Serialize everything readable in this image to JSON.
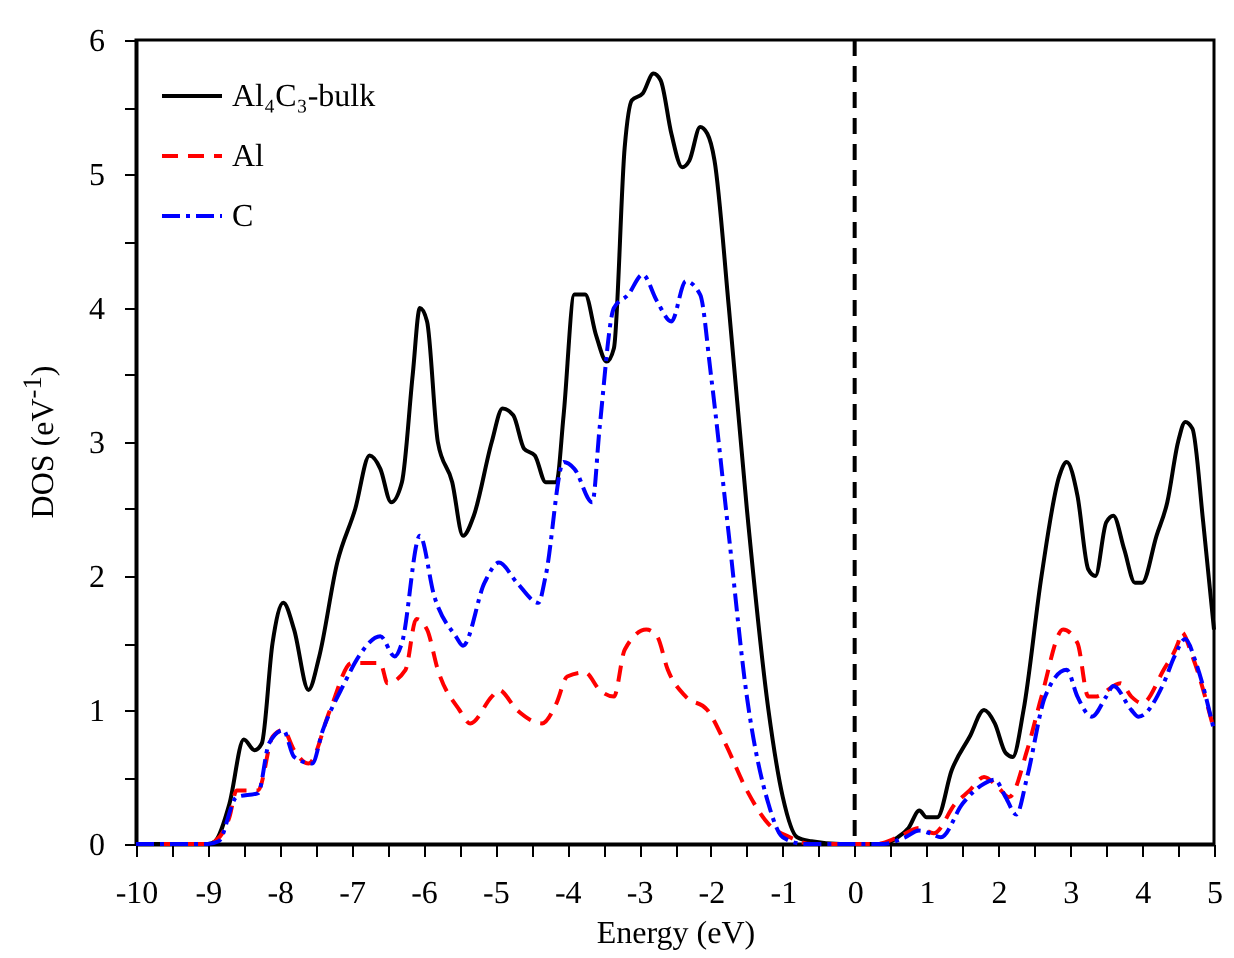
{
  "chart_data": {
    "type": "line",
    "xlabel": "Energy (eV)",
    "ylabel": "DOS (eV$^{-1}$)",
    "xlim": [
      -10,
      5
    ],
    "xticks": [
      -10,
      {
        "value": -9.5,
        "label": null
      },
      -9,
      {
        "value": -8.5,
        "label": null
      },
      -8,
      {
        "value": -7.5,
        "label": null
      },
      -7,
      {
        "value": -6.5,
        "label": null
      },
      -6,
      {
        "value": -5.5,
        "label": null
      },
      -5,
      {
        "value": -4.5,
        "label": null
      },
      -4,
      {
        "value": -3.5,
        "label": null
      },
      -3,
      {
        "value": -2.5,
        "label": null
      },
      -2,
      {
        "value": -1.5,
        "label": null
      },
      -1,
      {
        "value": -0.5,
        "label": null
      },
      0,
      {
        "value": 0.5,
        "label": null
      },
      1,
      {
        "value": 1.5,
        "label": null
      },
      2,
      {
        "value": 2.5,
        "label": null
      },
      3,
      {
        "value": 3.5,
        "label": null
      },
      4,
      {
        "value": 4.5,
        "label": null
      },
      5
    ],
    "ylim": [
      0,
      6
    ],
    "yticks": [
      0,
      {
        "value": 0.5,
        "label": null
      },
      1,
      {
        "value": 1.5,
        "label": null
      },
      2,
      {
        "value": 2.5,
        "label": null
      },
      3,
      {
        "value": 3.5,
        "label": null
      },
      4,
      {
        "value": 4.5,
        "label": null
      },
      5,
      {
        "value": 5.5,
        "label": null
      },
      6
    ],
    "grid": false,
    "legend": "top left",
    "marker": "none",
    "ref_lines": [
      {
        "axis": "x",
        "value": 0,
        "color": "#000000",
        "line_style": "dashed"
      }
    ],
    "series": [
      {
        "name": "Al₄C₃-bulk",
        "color": "#000000",
        "line_style": "solid",
        "x": [
          -10,
          -9,
          -8.9,
          -8.7,
          -8.5,
          -8.35,
          -8.25,
          -8.1,
          -7.95,
          -7.8,
          -7.6,
          -7.45,
          -7.2,
          -6.95,
          -6.75,
          -6.6,
          -6.45,
          -6.3,
          -6.15,
          -6.05,
          -5.95,
          -5.8,
          -5.6,
          -5.45,
          -5.3,
          -5.05,
          -4.9,
          -4.75,
          -4.6,
          -4.45,
          -4.3,
          -4.15,
          -4.05,
          -3.9,
          -3.75,
          -3.6,
          -3.45,
          -3.35,
          -3.2,
          -3.1,
          -2.95,
          -2.8,
          -2.7,
          -2.55,
          -2.4,
          -2.3,
          -2.15,
          -2.05,
          -1.95,
          -1.75,
          -1.5,
          -1.2,
          -1.0,
          -0.8,
          -0.6,
          -0.2,
          0.4,
          0.6,
          0.75,
          0.9,
          1.0,
          1.15,
          1.35,
          1.6,
          1.8,
          1.95,
          2.1,
          2.2,
          2.35,
          2.6,
          2.85,
          2.95,
          3.1,
          3.25,
          3.35,
          3.5,
          3.6,
          3.75,
          3.9,
          4.0,
          4.2,
          4.35,
          4.5,
          4.6,
          4.7,
          4.85,
          5.0
        ],
        "values": [
          0,
          0,
          0.02,
          0.3,
          0.78,
          0.7,
          0.75,
          1.5,
          1.8,
          1.6,
          1.15,
          1.4,
          2.1,
          2.5,
          2.9,
          2.8,
          2.55,
          2.7,
          3.5,
          4.0,
          3.9,
          3.0,
          2.7,
          2.3,
          2.45,
          3.0,
          3.25,
          3.2,
          2.95,
          2.9,
          2.7,
          2.7,
          3.2,
          4.1,
          4.1,
          3.8,
          3.6,
          3.7,
          5.2,
          5.55,
          5.6,
          5.75,
          5.7,
          5.3,
          5.05,
          5.1,
          5.35,
          5.3,
          5.1,
          4.0,
          2.5,
          1.0,
          0.35,
          0.05,
          0.02,
          0,
          0,
          0.05,
          0.12,
          0.25,
          0.2,
          0.2,
          0.55,
          0.8,
          1.0,
          0.9,
          0.68,
          0.65,
          1.0,
          2.0,
          2.75,
          2.85,
          2.6,
          2.05,
          2.0,
          2.4,
          2.45,
          2.2,
          1.95,
          1.95,
          2.3,
          2.55,
          3.0,
          3.15,
          3.1,
          2.4,
          1.6
        ]
      },
      {
        "name": "Al",
        "color": "#ff0000",
        "line_style": "dashed",
        "x": [
          -10,
          -9,
          -8.9,
          -8.7,
          -8.6,
          -8.3,
          -8.1,
          -7.95,
          -7.8,
          -7.6,
          -7.3,
          -7.0,
          -6.6,
          -6.5,
          -6.25,
          -6.1,
          -5.95,
          -5.8,
          -5.5,
          -5.35,
          -5.05,
          -4.95,
          -4.7,
          -4.35,
          -4.15,
          -4.0,
          -3.75,
          -3.55,
          -3.35,
          -3.2,
          -2.9,
          -2.75,
          -2.6,
          -2.35,
          -2.05,
          -1.8,
          -1.5,
          -1.2,
          -0.9,
          -0.6,
          0.3,
          0.6,
          0.9,
          1.1,
          1.4,
          1.6,
          1.8,
          2.0,
          2.15,
          2.4,
          2.6,
          2.9,
          3.1,
          3.25,
          3.35,
          3.7,
          3.85,
          4.0,
          4.3,
          4.5,
          4.55,
          4.7,
          5.0
        ],
        "values": [
          0,
          0,
          0.02,
          0.2,
          0.4,
          0.4,
          0.8,
          0.85,
          0.7,
          0.6,
          1.0,
          1.35,
          1.35,
          1.2,
          1.3,
          1.68,
          1.6,
          1.3,
          1.0,
          0.9,
          1.1,
          1.15,
          1.0,
          0.9,
          1.05,
          1.25,
          1.28,
          1.15,
          1.1,
          1.45,
          1.6,
          1.55,
          1.3,
          1.1,
          1.0,
          0.75,
          0.4,
          0.15,
          0.05,
          0,
          0,
          0.05,
          0.12,
          0.08,
          0.3,
          0.4,
          0.5,
          0.42,
          0.35,
          0.7,
          1.1,
          1.6,
          1.5,
          1.1,
          1.1,
          1.2,
          1.1,
          1.05,
          1.3,
          1.5,
          1.58,
          1.4,
          0.85
        ]
      },
      {
        "name": "C",
        "color": "#0000ff",
        "line_style": "dashdot",
        "x": [
          -10,
          -9,
          -8.85,
          -8.6,
          -8.3,
          -8.15,
          -7.95,
          -7.8,
          -7.55,
          -7.4,
          -7.1,
          -6.9,
          -6.6,
          -6.4,
          -6.3,
          -6.05,
          -5.85,
          -5.55,
          -5.45,
          -5.15,
          -4.95,
          -4.7,
          -4.4,
          -4.3,
          -4.05,
          -3.9,
          -3.65,
          -3.55,
          -3.35,
          -3.15,
          -2.95,
          -2.75,
          -2.55,
          -2.35,
          -2.15,
          -2.0,
          -1.75,
          -1.5,
          -1.2,
          -1.0,
          -0.7,
          0.4,
          0.7,
          0.9,
          1.05,
          1.2,
          1.5,
          1.8,
          1.95,
          2.1,
          2.25,
          2.4,
          2.65,
          2.95,
          3.1,
          3.3,
          3.5,
          3.6,
          3.85,
          3.95,
          4.3,
          4.45,
          4.6,
          4.75,
          5.0
        ],
        "values": [
          0,
          0,
          0.02,
          0.35,
          0.38,
          0.75,
          0.85,
          0.65,
          0.6,
          0.85,
          1.2,
          1.4,
          1.55,
          1.4,
          1.5,
          2.3,
          1.85,
          1.55,
          1.48,
          1.95,
          2.1,
          1.95,
          1.8,
          2.0,
          2.85,
          2.8,
          2.55,
          3.1,
          4.0,
          4.1,
          4.25,
          4.05,
          3.9,
          4.2,
          4.1,
          3.5,
          2.3,
          1.1,
          0.3,
          0.05,
          0,
          0,
          0.05,
          0.1,
          0.08,
          0.05,
          0.3,
          0.45,
          0.48,
          0.35,
          0.22,
          0.5,
          1.1,
          1.3,
          1.1,
          0.95,
          1.1,
          1.18,
          1.0,
          0.95,
          1.2,
          1.4,
          1.53,
          1.35,
          0.85
        ]
      }
    ]
  }
}
